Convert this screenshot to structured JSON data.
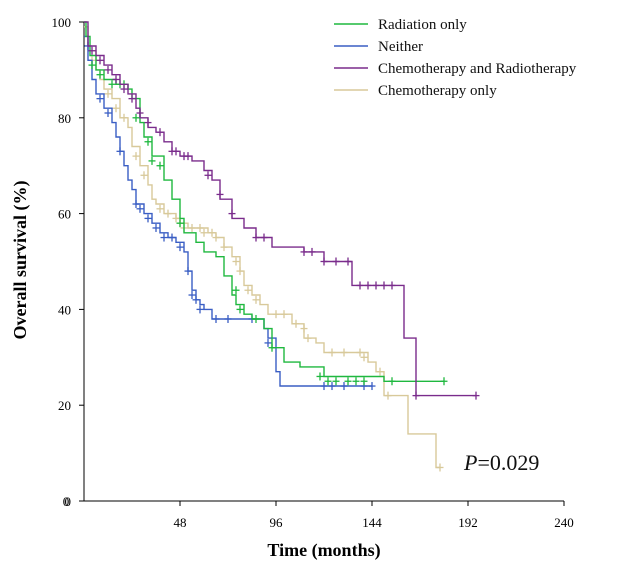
{
  "chart_data": {
    "type": "line",
    "title": "",
    "xlabel": "Time (months)",
    "ylabel": "Overall survival (%)",
    "xlim": [
      0,
      240
    ],
    "ylim": [
      0,
      100
    ],
    "xticks": [
      48,
      96,
      144,
      192,
      240
    ],
    "yticks": [
      0,
      20,
      40,
      60,
      80,
      100
    ],
    "x_tick_labels": [
      "48",
      "96",
      "144",
      "192",
      "240"
    ],
    "y_tick_labels": [
      "0",
      "20",
      "40",
      "60",
      "80",
      "100"
    ],
    "grid": false,
    "legend_position": "top-right",
    "annotation": {
      "p_label": "P",
      "p_value": "=0.029"
    },
    "series": [
      {
        "name": "Radiation only",
        "color": "#1fb83f",
        "steps": [
          [
            0,
            100
          ],
          [
            1,
            97
          ],
          [
            3,
            93
          ],
          [
            6,
            90
          ],
          [
            10,
            88
          ],
          [
            16,
            87
          ],
          [
            22,
            86
          ],
          [
            24,
            84
          ],
          [
            28,
            79
          ],
          [
            30,
            76
          ],
          [
            34,
            72
          ],
          [
            40,
            67
          ],
          [
            44,
            63
          ],
          [
            48,
            59
          ],
          [
            50,
            56
          ],
          [
            56,
            54
          ],
          [
            60,
            52
          ],
          [
            66,
            51
          ],
          [
            70,
            47
          ],
          [
            74,
            43
          ],
          [
            76,
            41
          ],
          [
            80,
            39
          ],
          [
            84,
            38
          ],
          [
            90,
            36
          ],
          [
            94,
            32
          ],
          [
            100,
            29
          ],
          [
            108,
            28
          ],
          [
            120,
            26
          ],
          [
            140,
            26
          ],
          [
            150,
            25
          ],
          [
            180,
            25
          ]
        ],
        "censored": [
          [
            4,
            91
          ],
          [
            8,
            89
          ],
          [
            14,
            87
          ],
          [
            18,
            87
          ],
          [
            20,
            87
          ],
          [
            26,
            80
          ],
          [
            32,
            75
          ],
          [
            34,
            71
          ],
          [
            38,
            70
          ],
          [
            48,
            58
          ],
          [
            76,
            44
          ],
          [
            78,
            40
          ],
          [
            86,
            38
          ],
          [
            94,
            32
          ],
          [
            118,
            26
          ],
          [
            122,
            25
          ],
          [
            126,
            25
          ],
          [
            132,
            25
          ],
          [
            136,
            25
          ],
          [
            140,
            25
          ],
          [
            154,
            25
          ],
          [
            180,
            25
          ]
        ]
      },
      {
        "name": "Neither",
        "color": "#3a5ec4",
        "steps": [
          [
            0,
            97
          ],
          [
            2,
            92
          ],
          [
            4,
            88
          ],
          [
            6,
            85
          ],
          [
            10,
            82
          ],
          [
            14,
            79
          ],
          [
            16,
            76
          ],
          [
            18,
            73
          ],
          [
            20,
            70
          ],
          [
            22,
            67
          ],
          [
            24,
            65
          ],
          [
            26,
            62
          ],
          [
            30,
            60
          ],
          [
            34,
            58
          ],
          [
            38,
            56
          ],
          [
            42,
            55
          ],
          [
            46,
            54
          ],
          [
            50,
            52
          ],
          [
            52,
            48
          ],
          [
            54,
            44
          ],
          [
            56,
            42
          ],
          [
            58,
            41
          ],
          [
            60,
            40
          ],
          [
            64,
            38
          ],
          [
            70,
            38
          ],
          [
            80,
            38
          ],
          [
            90,
            36
          ],
          [
            92,
            34
          ],
          [
            96,
            27
          ],
          [
            98,
            24
          ],
          [
            110,
            24
          ],
          [
            144,
            24
          ]
        ],
        "censored": [
          [
            2,
            95
          ],
          [
            8,
            84
          ],
          [
            12,
            81
          ],
          [
            18,
            73
          ],
          [
            26,
            62
          ],
          [
            28,
            61
          ],
          [
            32,
            59
          ],
          [
            36,
            57
          ],
          [
            40,
            55
          ],
          [
            44,
            55
          ],
          [
            48,
            53
          ],
          [
            52,
            48
          ],
          [
            54,
            43
          ],
          [
            56,
            42
          ],
          [
            58,
            40
          ],
          [
            66,
            38
          ],
          [
            72,
            38
          ],
          [
            84,
            38
          ],
          [
            92,
            33
          ],
          [
            120,
            24
          ],
          [
            124,
            24
          ],
          [
            130,
            24
          ],
          [
            140,
            24
          ],
          [
            144,
            24
          ]
        ]
      },
      {
        "name": "Chemotherapy and Radiotherapy",
        "color": "#7a2c8c",
        "steps": [
          [
            0,
            100
          ],
          [
            2,
            95
          ],
          [
            6,
            93
          ],
          [
            10,
            91
          ],
          [
            14,
            89
          ],
          [
            18,
            87
          ],
          [
            22,
            85
          ],
          [
            26,
            82
          ],
          [
            28,
            80
          ],
          [
            32,
            78
          ],
          [
            36,
            77
          ],
          [
            40,
            75
          ],
          [
            44,
            73
          ],
          [
            48,
            72
          ],
          [
            54,
            71
          ],
          [
            60,
            69
          ],
          [
            64,
            67
          ],
          [
            68,
            63
          ],
          [
            74,
            59
          ],
          [
            80,
            57
          ],
          [
            86,
            55
          ],
          [
            94,
            53
          ],
          [
            110,
            52
          ],
          [
            120,
            50
          ],
          [
            132,
            50
          ],
          [
            134,
            45
          ],
          [
            156,
            45
          ],
          [
            160,
            34
          ],
          [
            166,
            22
          ],
          [
            196,
            22
          ]
        ],
        "censored": [
          [
            4,
            94
          ],
          [
            8,
            92
          ],
          [
            12,
            90
          ],
          [
            16,
            88
          ],
          [
            20,
            86
          ],
          [
            24,
            84
          ],
          [
            28,
            81
          ],
          [
            32,
            79
          ],
          [
            38,
            77
          ],
          [
            44,
            73
          ],
          [
            46,
            73
          ],
          [
            50,
            72
          ],
          [
            52,
            72
          ],
          [
            62,
            68
          ],
          [
            68,
            64
          ],
          [
            74,
            60
          ],
          [
            86,
            55
          ],
          [
            90,
            55
          ],
          [
            110,
            52
          ],
          [
            114,
            52
          ],
          [
            120,
            50
          ],
          [
            126,
            50
          ],
          [
            132,
            50
          ],
          [
            138,
            45
          ],
          [
            142,
            45
          ],
          [
            146,
            45
          ],
          [
            150,
            45
          ],
          [
            154,
            45
          ],
          [
            166,
            22
          ],
          [
            196,
            22
          ]
        ]
      },
      {
        "name": "Chemotherapy only",
        "color": "#d8c99a",
        "steps": [
          [
            0,
            99
          ],
          [
            2,
            94
          ],
          [
            6,
            90
          ],
          [
            8,
            88
          ],
          [
            10,
            86
          ],
          [
            14,
            84
          ],
          [
            18,
            80
          ],
          [
            22,
            78
          ],
          [
            24,
            74
          ],
          [
            28,
            70
          ],
          [
            32,
            66
          ],
          [
            34,
            63
          ],
          [
            36,
            62
          ],
          [
            40,
            60
          ],
          [
            46,
            59
          ],
          [
            48,
            58
          ],
          [
            52,
            57
          ],
          [
            56,
            57
          ],
          [
            62,
            56
          ],
          [
            66,
            55
          ],
          [
            70,
            53
          ],
          [
            74,
            51
          ],
          [
            78,
            48
          ],
          [
            80,
            45
          ],
          [
            84,
            43
          ],
          [
            88,
            41
          ],
          [
            92,
            39
          ],
          [
            104,
            37
          ],
          [
            110,
            34
          ],
          [
            116,
            33
          ],
          [
            120,
            31
          ],
          [
            140,
            31
          ],
          [
            142,
            29
          ],
          [
            146,
            27
          ],
          [
            150,
            22
          ],
          [
            156,
            22
          ],
          [
            162,
            14
          ],
          [
            172,
            14
          ],
          [
            176,
            7
          ],
          [
            178,
            7
          ]
        ],
        "censored": [
          [
            4,
            92
          ],
          [
            12,
            85
          ],
          [
            16,
            82
          ],
          [
            20,
            80
          ],
          [
            26,
            72
          ],
          [
            30,
            68
          ],
          [
            38,
            61
          ],
          [
            42,
            60
          ],
          [
            46,
            59
          ],
          [
            48,
            58
          ],
          [
            50,
            57
          ],
          [
            54,
            57
          ],
          [
            58,
            57
          ],
          [
            60,
            56
          ],
          [
            64,
            56
          ],
          [
            66,
            55
          ],
          [
            70,
            53
          ],
          [
            76,
            50
          ],
          [
            78,
            48
          ],
          [
            82,
            44
          ],
          [
            86,
            42
          ],
          [
            96,
            39
          ],
          [
            100,
            39
          ],
          [
            106,
            37
          ],
          [
            110,
            36
          ],
          [
            112,
            34
          ],
          [
            124,
            31
          ],
          [
            130,
            31
          ],
          [
            138,
            31
          ],
          [
            140,
            30
          ],
          [
            148,
            27
          ],
          [
            152,
            22
          ],
          [
            178,
            7
          ]
        ]
      }
    ]
  }
}
